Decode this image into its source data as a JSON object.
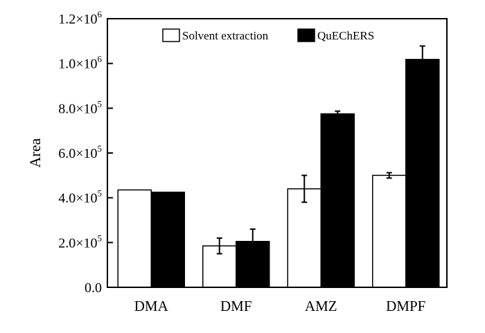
{
  "chart_data": {
    "type": "bar",
    "categories": [
      "DMA",
      "DMF",
      "AMZ",
      "DMPF"
    ],
    "series": [
      {
        "name": "Solvent extraction",
        "color": "#ffffff",
        "values": [
          435000,
          185000,
          440000,
          500000
        ],
        "errors": [
          0,
          35000,
          60000,
          12000
        ]
      },
      {
        "name": "QuEChERS",
        "color": "#000000",
        "values": [
          425000,
          205000,
          775000,
          1018000
        ],
        "errors": [
          0,
          55000,
          12000,
          60000
        ]
      }
    ],
    "xlabel": "",
    "ylabel": "Area",
    "ylim": [
      0,
      1200000
    ],
    "yticks": [
      {
        "value": 0,
        "label": "0.0",
        "exp": ""
      },
      {
        "value": 200000,
        "label": "2.0×10",
        "exp": "5"
      },
      {
        "value": 400000,
        "label": "4.0×10",
        "exp": "5"
      },
      {
        "value": 600000,
        "label": "6.0×10",
        "exp": "5"
      },
      {
        "value": 800000,
        "label": "8.0×10",
        "exp": "5"
      },
      {
        "value": 1000000,
        "label": "1.0×10",
        "exp": "6"
      },
      {
        "value": 1200000,
        "label": "1.2×10",
        "exp": "6"
      }
    ],
    "legend_position": "top-right",
    "grid": false
  }
}
